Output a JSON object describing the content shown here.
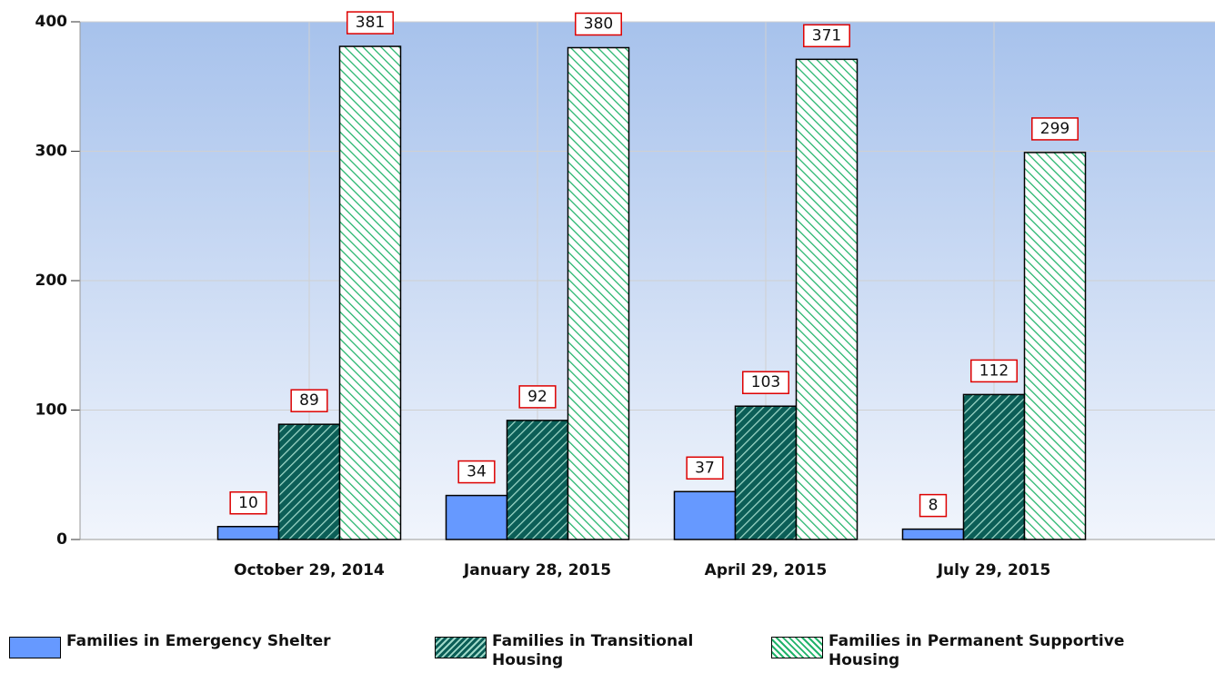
{
  "chart_data": {
    "type": "bar",
    "categories": [
      "October 29, 2014",
      "January 28, 2015",
      "April 29, 2015",
      "July 29, 2015"
    ],
    "series": [
      {
        "name": "Families in Emergency Shelter",
        "color": "#6699ff",
        "hatch": "none",
        "values": [
          10,
          34,
          37,
          8
        ]
      },
      {
        "name": "Families in Transitional Housing",
        "color": "#0b5e57",
        "hatch_color": "#9fd9c9",
        "hatch": "forward",
        "values": [
          89,
          92,
          103,
          112
        ]
      },
      {
        "name": "Families in Permanent Supportive Housing",
        "color": "#ffffff",
        "hatch_color": "#21b36a",
        "hatch": "backward",
        "values": [
          381,
          380,
          371,
          299
        ]
      }
    ],
    "ylim": [
      0,
      400
    ],
    "yticks": [
      0,
      100,
      200,
      300,
      400
    ],
    "grid": true,
    "legend": "bottom"
  }
}
